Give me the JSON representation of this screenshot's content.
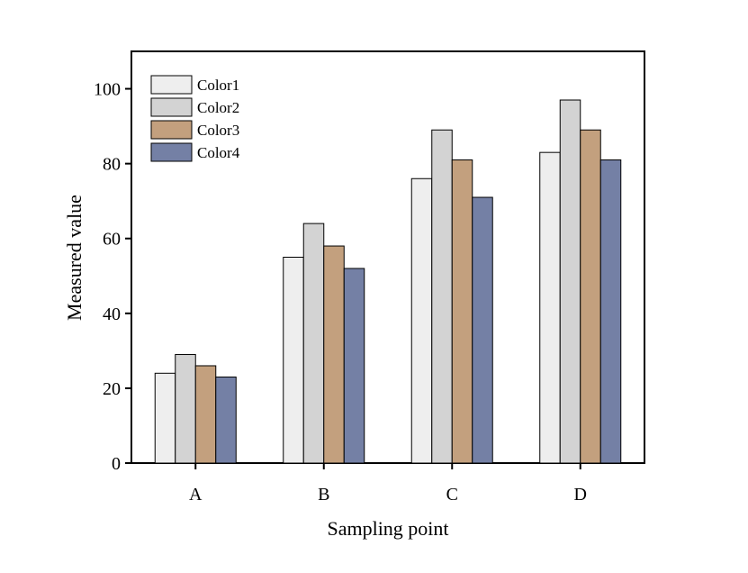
{
  "chart_data": {
    "type": "bar",
    "title": "",
    "xlabel": "Sampling point",
    "ylabel": "Measured value",
    "categories": [
      "A",
      "B",
      "C",
      "D"
    ],
    "ylim": [
      0,
      110
    ],
    "yticks": [
      0,
      20,
      40,
      60,
      80,
      100
    ],
    "series": [
      {
        "name": "Color1",
        "color": "#eeeeee",
        "values": [
          24,
          55,
          76,
          83
        ]
      },
      {
        "name": "Color2",
        "color": "#d3d3d3",
        "values": [
          29,
          64,
          89,
          97
        ]
      },
      {
        "name": "Color3",
        "color": "#c3a07e",
        "values": [
          26,
          58,
          81,
          89
        ]
      },
      {
        "name": "Color4",
        "color": "#7480a5",
        "values": [
          23,
          52,
          71,
          81
        ]
      }
    ],
    "legend_position": "top-left",
    "grid": false
  }
}
